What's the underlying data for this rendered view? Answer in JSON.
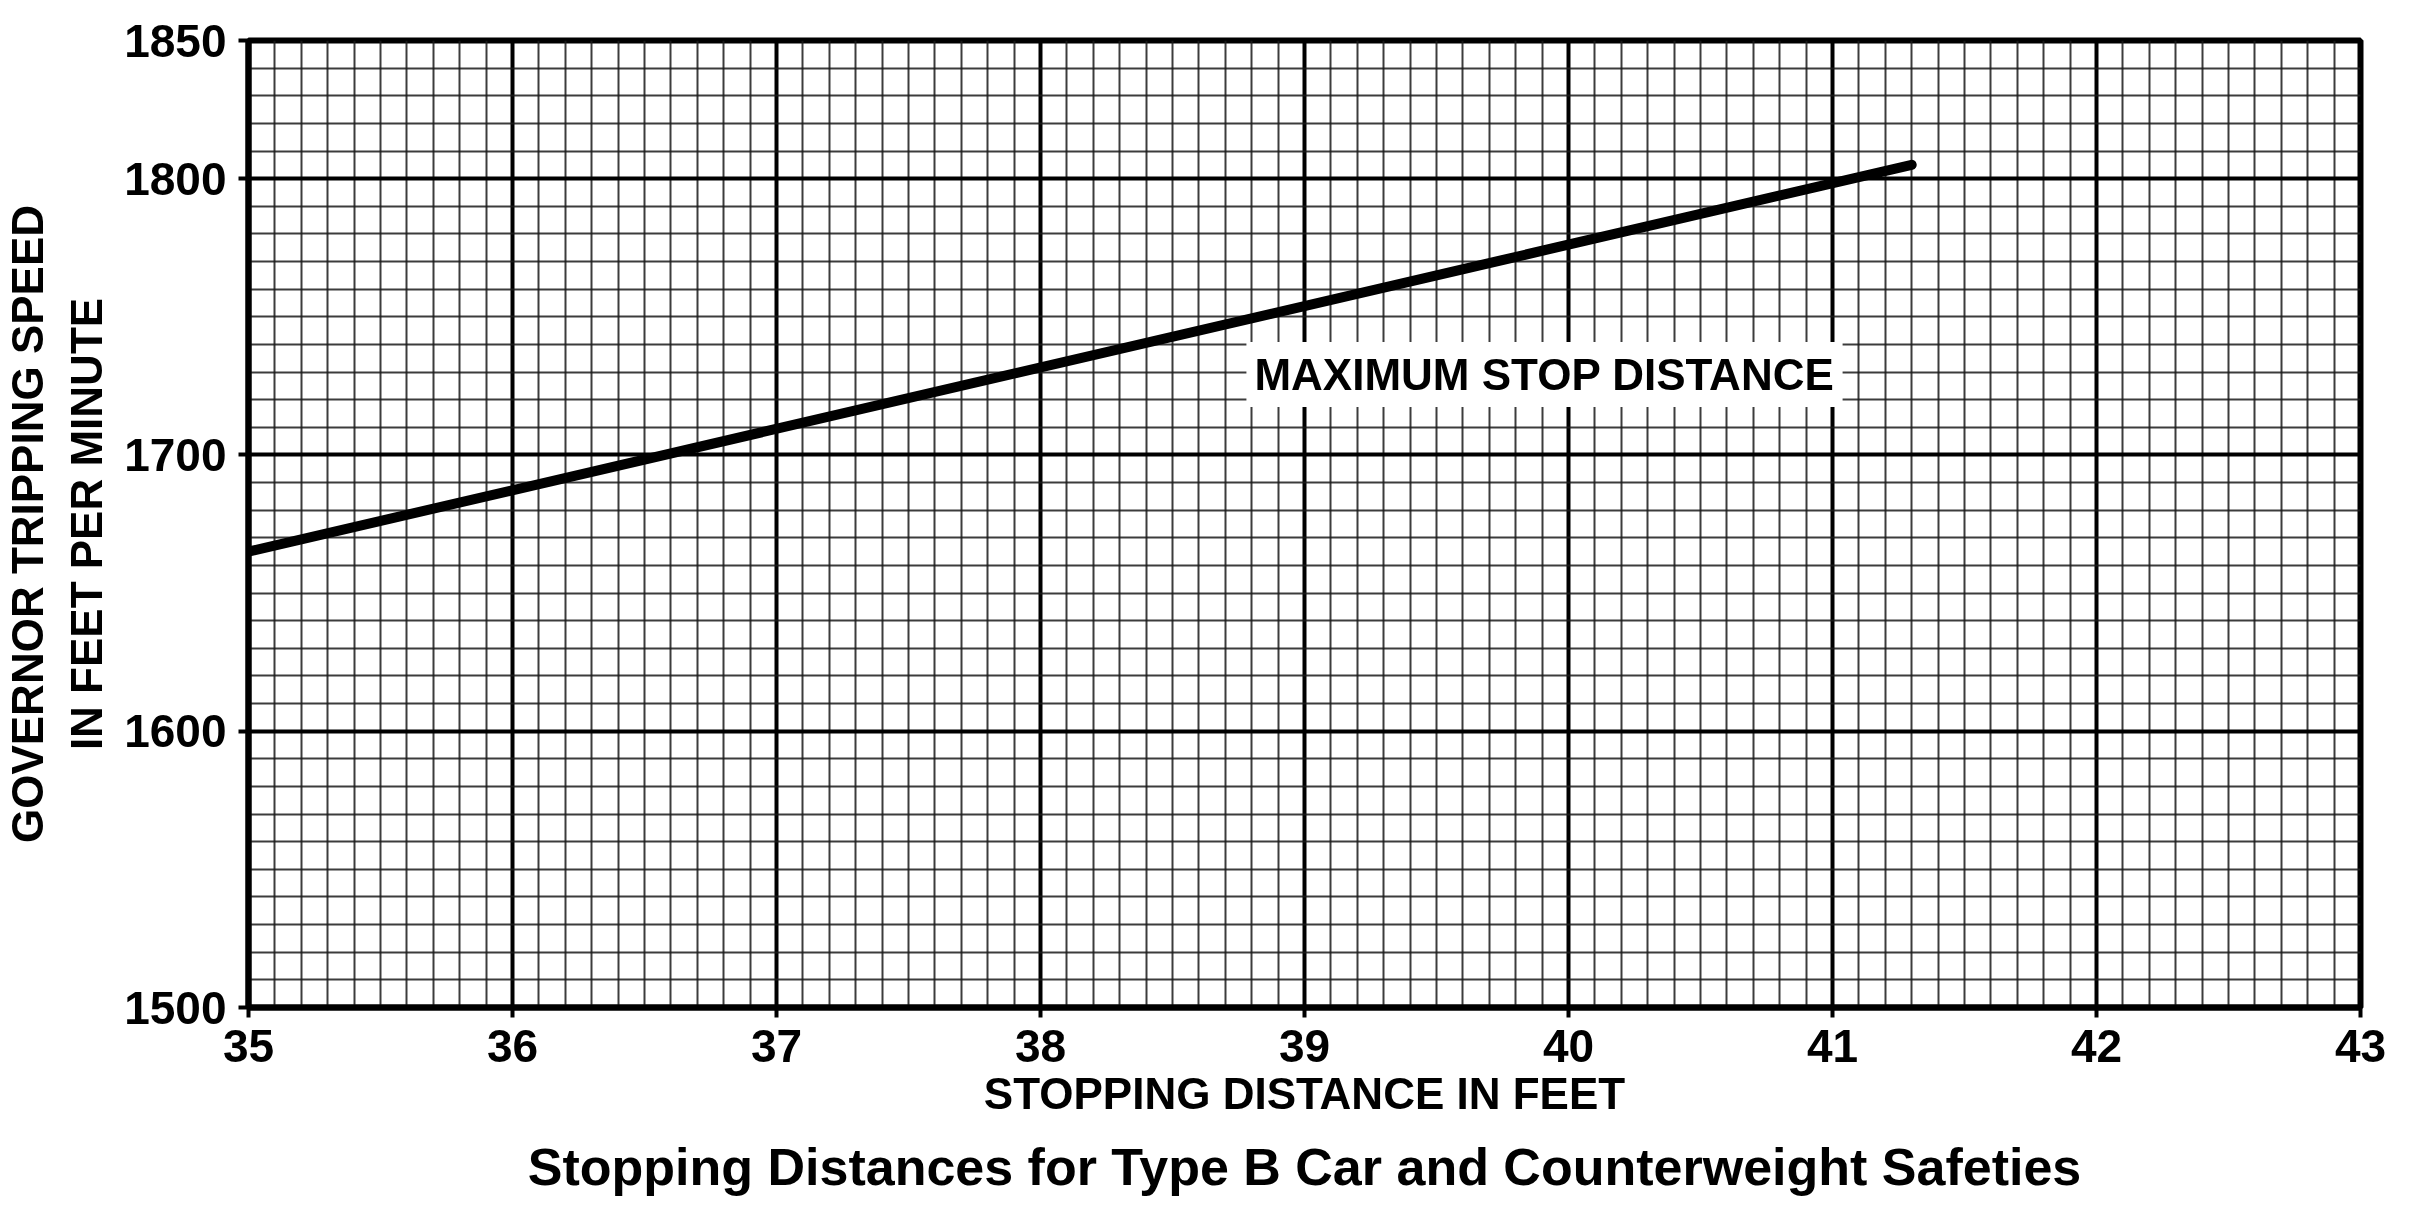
{
  "chart_data": {
    "type": "line",
    "title": "Stopping Distances for Type B Car and Counterweight Safeties",
    "xlabel": "STOPPING DISTANCE IN FEET",
    "ylabel": "GOVERNOR TRIPPING SPEED\nIN FEET PER MINUTE",
    "series": [
      {
        "name": "MAXIMUM STOP DISTANCE",
        "color": "#000000",
        "x": [
          35,
          41.3
        ],
        "values": [
          1665,
          1805
        ]
      }
    ],
    "xlim": [
      35,
      43
    ],
    "ylim": [
      1500,
      1850
    ],
    "xticks": [
      35,
      36,
      37,
      38,
      39,
      40,
      41,
      42,
      43
    ],
    "yticks": [
      1500,
      1600,
      1700,
      1800,
      1850
    ],
    "grid": true
  }
}
